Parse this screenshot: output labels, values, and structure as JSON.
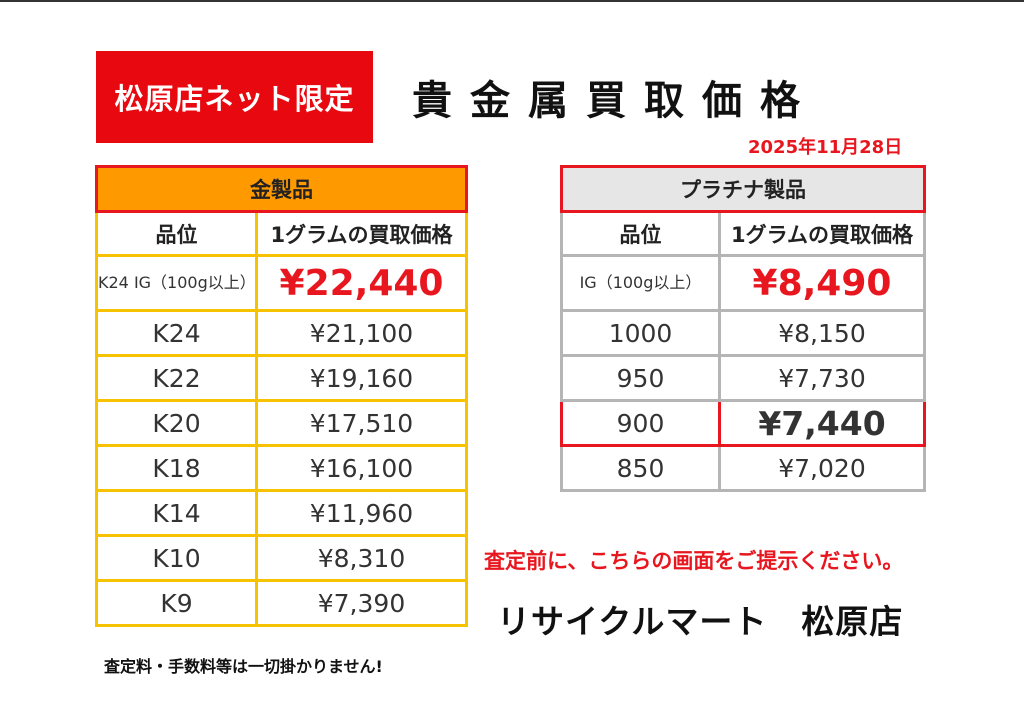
{
  "badge": "松原店ネット限定",
  "title": "貴金属買取価格",
  "date": "2025年11月28日",
  "gold": {
    "header": "金製品",
    "col_grade": "品位",
    "col_price": "1グラムの買取価格",
    "feature": {
      "grade": "K24 IG（100g以上）",
      "price": "¥22,440"
    },
    "rows": [
      {
        "grade": "K24",
        "price": "¥21,100"
      },
      {
        "grade": "K22",
        "price": "¥19,160"
      },
      {
        "grade": "K20",
        "price": "¥17,510"
      },
      {
        "grade": "K18",
        "price": "¥16,100"
      },
      {
        "grade": "K14",
        "price": "¥11,960"
      },
      {
        "grade": "K10",
        "price": "¥8,310"
      },
      {
        "grade": "K9",
        "price": "¥7,390"
      }
    ]
  },
  "platinum": {
    "header": "プラチナ製品",
    "col_grade": "品位",
    "col_price": "1グラムの買取価格",
    "feature": {
      "grade": "IG（100g以上）",
      "price": "¥8,490"
    },
    "rows": [
      {
        "grade": "1000",
        "price": "¥8,150"
      },
      {
        "grade": "950",
        "price": "¥7,730"
      },
      {
        "grade": "900",
        "price": "¥7,440"
      },
      {
        "grade": "850",
        "price": "¥7,020"
      }
    ]
  },
  "notice": "査定前に、こちらの画面をご提示ください。",
  "store": "リサイクルマート　松原店",
  "fee_note": "査定料・手数料等は一切掛かりません!",
  "colors": {
    "accent_red": "#e8171f",
    "gold_header": "#ff9900",
    "gold_border": "#f7c300",
    "platinum_header": "#e6e6e6"
  }
}
